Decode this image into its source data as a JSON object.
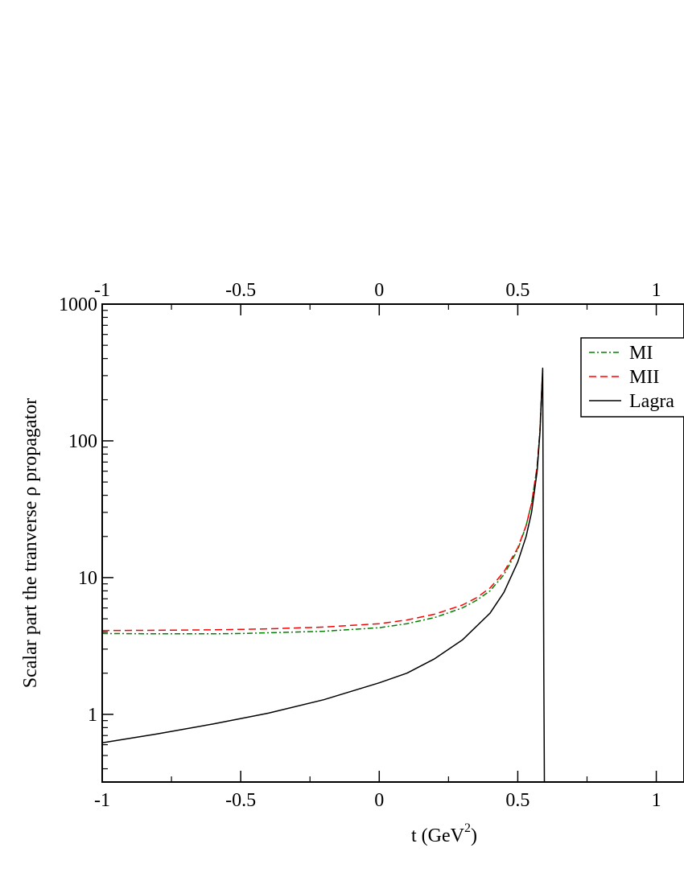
{
  "chart_data": {
    "type": "line",
    "title": "",
    "xlabel": "t (GeV",
    "xlabel_sup": "2",
    "xlabel_tail": ")",
    "ylabel": "Scalar part the tranverse  ρ  propagator",
    "xlim": [
      -1,
      1.1
    ],
    "ylim": [
      0.32,
      1000
    ],
    "yscale": "log",
    "grid": false,
    "legend_position": "top-right",
    "x_tick_values": [
      -1,
      -0.5,
      0,
      0.5,
      1
    ],
    "x_tick_labels": [
      "-1",
      "-0.5",
      "0",
      "0.5",
      "1"
    ],
    "y_tick_values": [
      1,
      10,
      100,
      1000
    ],
    "y_tick_labels": [
      "1",
      "10",
      "100",
      "1000"
    ],
    "series": [
      {
        "name": "MI",
        "color": "#008000",
        "dash": "dash-dot",
        "x": [
          -1,
          -0.8,
          -0.6,
          -0.5,
          -0.4,
          -0.2,
          0,
          0.1,
          0.2,
          0.3,
          0.35,
          0.4,
          0.45,
          0.5,
          0.53,
          0.55,
          0.57,
          0.58,
          0.585,
          0.59
        ],
        "y": [
          3.9,
          3.88,
          3.88,
          3.9,
          3.95,
          4.05,
          4.3,
          4.6,
          5.1,
          6.0,
          6.8,
          8.0,
          10.5,
          16,
          24,
          35,
          65,
          120,
          200,
          330
        ]
      },
      {
        "name": "MII",
        "color": "#ff0000",
        "dash": "dashed",
        "x": [
          -1,
          -0.8,
          -0.6,
          -0.5,
          -0.4,
          -0.2,
          0,
          0.1,
          0.2,
          0.3,
          0.35,
          0.4,
          0.45,
          0.5,
          0.53,
          0.55,
          0.57,
          0.58,
          0.585,
          0.59
        ],
        "y": [
          4.1,
          4.12,
          4.15,
          4.18,
          4.22,
          4.35,
          4.6,
          4.9,
          5.4,
          6.3,
          7.1,
          8.4,
          11,
          16.5,
          24,
          35,
          65,
          120,
          200,
          330
        ]
      },
      {
        "name": "Lagra",
        "color": "#000000",
        "dash": "solid",
        "x": [
          -1,
          -0.8,
          -0.6,
          -0.4,
          -0.2,
          0,
          0.1,
          0.2,
          0.3,
          0.4,
          0.45,
          0.5,
          0.53,
          0.55,
          0.57,
          0.58,
          0.585,
          0.59,
          0.594,
          0.596
        ],
        "y": [
          0.62,
          0.72,
          0.85,
          1.02,
          1.28,
          1.7,
          2.0,
          2.55,
          3.5,
          5.5,
          7.8,
          13,
          20,
          30,
          60,
          115,
          200,
          340,
          2.0,
          0.32
        ]
      }
    ]
  }
}
